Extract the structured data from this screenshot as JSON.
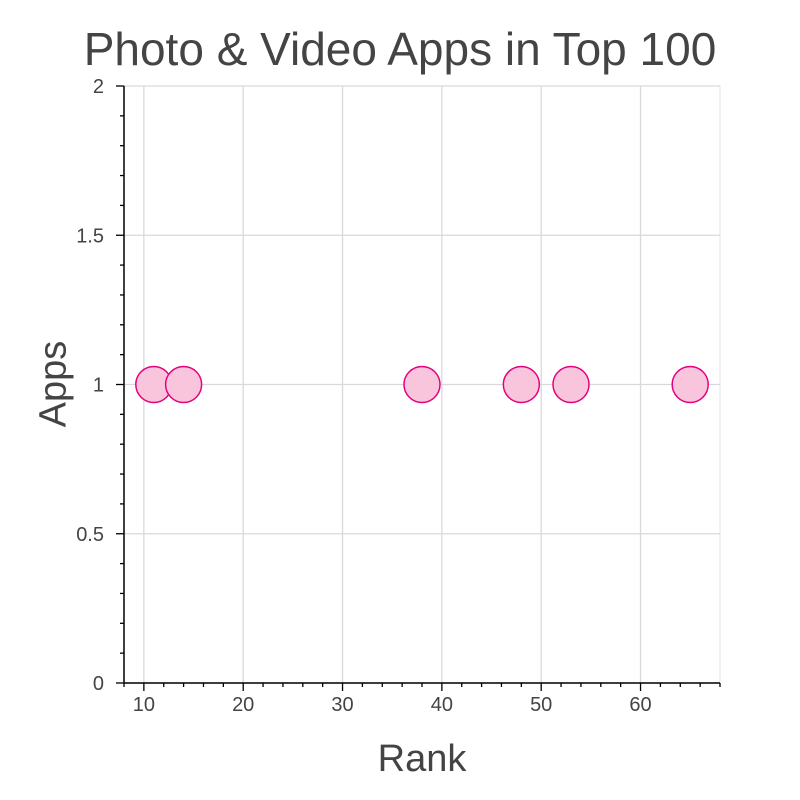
{
  "chart_data": {
    "type": "scatter",
    "title": "Photo & Video Apps in Top 100",
    "xlabel": "Rank",
    "ylabel": "Apps",
    "xlim": [
      8,
      68
    ],
    "ylim": [
      0,
      2
    ],
    "x_ticks": [
      10,
      20,
      30,
      40,
      50,
      60
    ],
    "x_tick_labels": [
      "10",
      "20",
      "30",
      "40",
      "50",
      "60"
    ],
    "y_ticks": [
      0,
      0.5,
      1,
      1.5,
      2
    ],
    "y_tick_labels": [
      "0",
      "0.5",
      "1",
      "1.5",
      "2"
    ],
    "grid": true,
    "series": [
      {
        "x": [
          11,
          14,
          38,
          48,
          53,
          65
        ],
        "y": [
          1,
          1,
          1,
          1,
          1,
          1
        ],
        "color": "#e6007e",
        "fill": "#f9c5dd"
      }
    ]
  }
}
